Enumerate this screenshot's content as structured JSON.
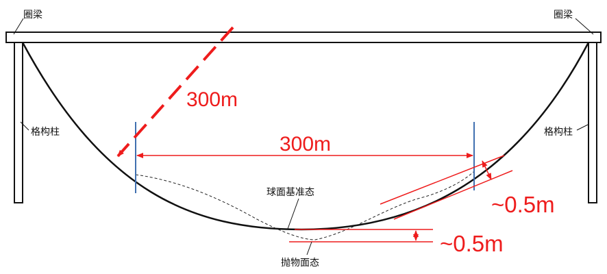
{
  "labels": {
    "ring_beam_left": "圈梁",
    "ring_beam_right": "圈梁",
    "lattice_column_left": "格构柱",
    "lattice_column_right": "格构柱",
    "spherical_reference": "球面基准态",
    "paraboloid": "抛物面态"
  },
  "dimensions": {
    "diagonal_span": "300m",
    "horizontal_span": "300m",
    "side_deviation": "~0.5m",
    "bottom_deviation": "~0.5m"
  },
  "colors": {
    "structure": "#111111",
    "dimension": "#ee1c1c",
    "marker": "#3f6fb0"
  }
}
